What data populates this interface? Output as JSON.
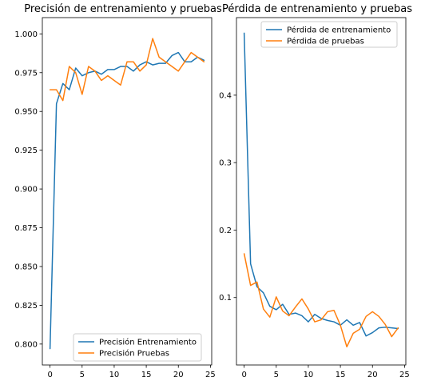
{
  "colors": {
    "train": "#1f77b4",
    "test": "#ff7f0e"
  },
  "chart_data": [
    {
      "type": "line",
      "title": "Precisión de entrenamiento y pruebas",
      "xlabel": "",
      "ylabel": "",
      "xlim": [
        -1.2,
        25.2
      ],
      "ylim": [
        0.7865,
        1.0105
      ],
      "xticks": [
        0,
        5,
        10,
        15,
        20,
        25
      ],
      "yticks": [
        0.8,
        0.825,
        0.85,
        0.875,
        0.9,
        0.925,
        0.95,
        0.975,
        1.0
      ],
      "ytick_labels": [
        "0.800",
        "0.825",
        "0.850",
        "0.875",
        "0.900",
        "0.925",
        "0.950",
        "0.975",
        "1.000"
      ],
      "legend_position": "lower-right",
      "grid": false,
      "x": [
        0,
        1,
        2,
        3,
        4,
        5,
        6,
        7,
        8,
        9,
        10,
        11,
        12,
        13,
        14,
        15,
        16,
        17,
        18,
        19,
        20,
        21,
        22,
        23,
        24
      ],
      "series": [
        {
          "name": "Precisión Entrenamiento",
          "color": "#1f77b4",
          "values": [
            0.797,
            0.955,
            0.968,
            0.964,
            0.978,
            0.973,
            0.975,
            0.976,
            0.974,
            0.977,
            0.977,
            0.979,
            0.979,
            0.976,
            0.98,
            0.982,
            0.98,
            0.981,
            0.981,
            0.986,
            0.988,
            0.982,
            0.982,
            0.985,
            0.983
          ]
        },
        {
          "name": "Precisión Pruebas",
          "color": "#ff7f0e",
          "values": [
            0.964,
            0.964,
            0.957,
            0.979,
            0.975,
            0.961,
            0.979,
            0.976,
            0.97,
            0.973,
            0.97,
            0.967,
            0.982,
            0.982,
            0.976,
            0.98,
            0.997,
            0.985,
            0.982,
            0.979,
            0.976,
            0.982,
            0.988,
            0.985,
            0.982
          ]
        }
      ]
    },
    {
      "type": "line",
      "title": "Pérdida de entrenamiento y pruebas",
      "xlabel": "",
      "ylabel": "",
      "xlim": [
        -1.2,
        25.2
      ],
      "ylim": [
        0.0,
        0.515
      ],
      "xticks": [
        0,
        5,
        10,
        15,
        20,
        25
      ],
      "yticks": [
        0.1,
        0.2,
        0.3,
        0.4
      ],
      "ytick_labels": [
        "0.1",
        "0.2",
        "0.3",
        "0.4"
      ],
      "legend_position": "upper-right",
      "grid": false,
      "x": [
        0,
        1,
        2,
        3,
        4,
        5,
        6,
        7,
        8,
        9,
        10,
        11,
        12,
        13,
        14,
        15,
        16,
        17,
        18,
        19,
        20,
        21,
        22,
        23,
        24
      ],
      "series": [
        {
          "name": "Pérdida de entrenamiento",
          "color": "#1f77b4",
          "values": [
            0.492,
            0.15,
            0.116,
            0.107,
            0.087,
            0.082,
            0.09,
            0.075,
            0.077,
            0.073,
            0.064,
            0.075,
            0.069,
            0.066,
            0.064,
            0.059,
            0.067,
            0.059,
            0.063,
            0.043,
            0.048,
            0.055,
            0.056,
            0.055,
            0.054
          ]
        },
        {
          "name": "Pérdida de pruebas",
          "color": "#ff7f0e",
          "values": [
            0.165,
            0.118,
            0.123,
            0.083,
            0.071,
            0.101,
            0.08,
            0.073,
            0.086,
            0.098,
            0.083,
            0.064,
            0.067,
            0.079,
            0.081,
            0.059,
            0.027,
            0.047,
            0.053,
            0.072,
            0.079,
            0.072,
            0.06,
            0.042,
            0.055
          ]
        }
      ]
    }
  ]
}
